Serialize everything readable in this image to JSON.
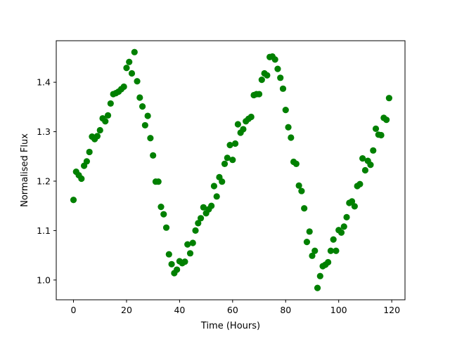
{
  "chart_data": {
    "type": "scatter",
    "xlabel": "Time (Hours)",
    "ylabel": "Normalised Flux",
    "xlim": [
      -6.5,
      125
    ],
    "ylim": [
      0.96,
      1.484
    ],
    "xticks": [
      0,
      20,
      40,
      60,
      80,
      100,
      120
    ],
    "yticks": [
      1.0,
      1.1,
      1.2,
      1.3,
      1.4
    ],
    "grid": false,
    "legend": "none",
    "marker_color": "#008000",
    "series": [
      {
        "x": [
          0,
          1,
          2,
          3,
          4,
          5,
          6,
          7,
          8,
          9,
          10,
          11,
          12,
          13,
          14,
          15,
          16,
          17,
          18,
          19,
          20,
          21,
          22,
          23,
          24,
          25,
          26,
          27,
          28,
          29,
          30,
          31,
          32,
          33,
          34,
          35,
          36,
          37,
          38,
          39,
          40,
          41,
          42,
          43,
          44,
          45,
          46,
          47,
          48,
          49,
          50,
          51,
          52,
          53,
          54,
          55,
          56,
          57,
          58,
          59,
          60,
          61,
          62,
          63,
          64,
          65,
          66,
          67,
          68,
          69,
          70,
          71,
          72,
          73,
          74,
          75,
          76,
          77,
          78,
          79,
          80,
          81,
          82,
          83,
          84,
          85,
          86,
          87,
          88,
          89,
          90,
          91,
          92,
          93,
          94,
          95,
          96,
          97,
          98,
          99,
          100,
          101,
          102,
          103,
          104,
          105,
          106,
          107,
          108,
          109,
          110,
          111,
          112,
          113,
          114,
          115,
          116,
          117,
          118,
          119
        ],
        "y": [
          1.162,
          1.219,
          1.212,
          1.205,
          1.231,
          1.24,
          1.259,
          1.29,
          1.285,
          1.291,
          1.303,
          1.327,
          1.321,
          1.333,
          1.357,
          1.376,
          1.378,
          1.381,
          1.386,
          1.391,
          1.429,
          1.441,
          1.418,
          1.461,
          1.402,
          1.369,
          1.351,
          1.313,
          1.332,
          1.287,
          1.252,
          1.199,
          1.199,
          1.148,
          1.133,
          1.106,
          1.052,
          1.032,
          1.014,
          1.021,
          1.038,
          1.034,
          1.037,
          1.072,
          1.054,
          1.075,
          1.1,
          1.115,
          1.125,
          1.147,
          1.135,
          1.143,
          1.15,
          1.19,
          1.169,
          1.208,
          1.199,
          1.235,
          1.247,
          1.273,
          1.243,
          1.276,
          1.315,
          1.298,
          1.305,
          1.321,
          1.326,
          1.33,
          1.374,
          1.376,
          1.376,
          1.405,
          1.418,
          1.414,
          1.451,
          1.452,
          1.446,
          1.427,
          1.409,
          1.387,
          1.344,
          1.309,
          1.288,
          1.239,
          1.235,
          1.191,
          1.18,
          1.145,
          1.077,
          1.098,
          1.049,
          1.059,
          0.984,
          1.008,
          1.028,
          1.031,
          1.036,
          1.059,
          1.082,
          1.059,
          1.101,
          1.096,
          1.108,
          1.127,
          1.156,
          1.159,
          1.149,
          1.19,
          1.194,
          1.246,
          1.222,
          1.241,
          1.233,
          1.262,
          1.306,
          1.294,
          1.293,
          1.328,
          1.324,
          1.368
        ]
      }
    ]
  }
}
